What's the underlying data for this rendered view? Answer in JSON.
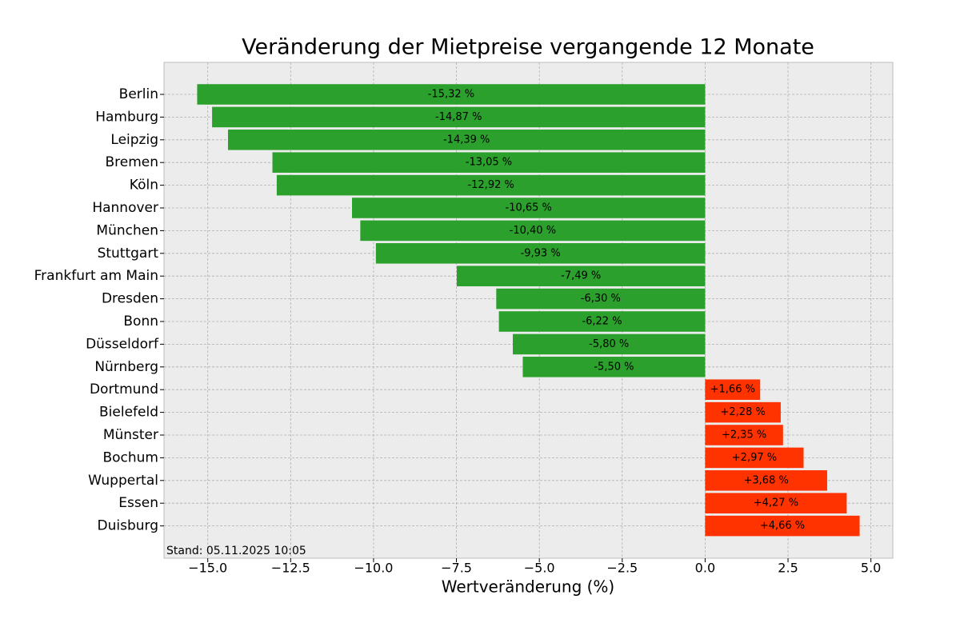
{
  "chart_data": {
    "type": "barh",
    "title": "Veränderung der Mietpreise vergangende 12 Monate",
    "xlabel": "Wertveränderung (%)",
    "annotation": "Stand: 05.11.2025 10:05",
    "categories": [
      "Berlin",
      "Hamburg",
      "Leipzig",
      "Bremen",
      "Köln",
      "Hannover",
      "München",
      "Stuttgart",
      "Frankfurt am Main",
      "Dresden",
      "Bonn",
      "Düsseldorf",
      "Nürnberg",
      "Dortmund",
      "Bielefeld",
      "Münster",
      "Bochum",
      "Wuppertal",
      "Essen",
      "Duisburg"
    ],
    "values": [
      -15.32,
      -14.87,
      -14.39,
      -13.05,
      -12.92,
      -10.65,
      -10.4,
      -9.93,
      -7.49,
      -6.3,
      -6.22,
      -5.8,
      -5.5,
      1.66,
      2.28,
      2.35,
      2.97,
      3.68,
      4.27,
      4.66
    ],
    "value_labels": [
      "-15,32 %",
      "-14,87 %",
      "-14,39 %",
      "-13,05 %",
      "-12,92 %",
      "-10,65 %",
      "-10,40 %",
      "-9,93 %",
      "-7,49 %",
      "-6,30 %",
      "-6,22 %",
      "-5,80 %",
      "-5,50 %",
      "+1,66 %",
      "+2,28 %",
      "+2,35 %",
      "+2,97 %",
      "+3,68 %",
      "+4,27 %",
      "+4,66 %"
    ],
    "negative_color": "#2ca02c",
    "positive_color": "#ff3300",
    "xlim": [
      -16.32,
      5.66
    ],
    "xticks": [
      {
        "value": -15,
        "label": "−15.0"
      },
      {
        "value": -12.5,
        "label": "−12.5"
      },
      {
        "value": -10,
        "label": "−10.0"
      },
      {
        "value": -7.5,
        "label": "−7.5"
      },
      {
        "value": -5,
        "label": "−5.0"
      },
      {
        "value": -2.5,
        "label": "−2.5"
      },
      {
        "value": 0,
        "label": "0.0"
      },
      {
        "value": 2.5,
        "label": "2.5"
      },
      {
        "value": 5,
        "label": "5.0"
      }
    ],
    "grid": true
  }
}
